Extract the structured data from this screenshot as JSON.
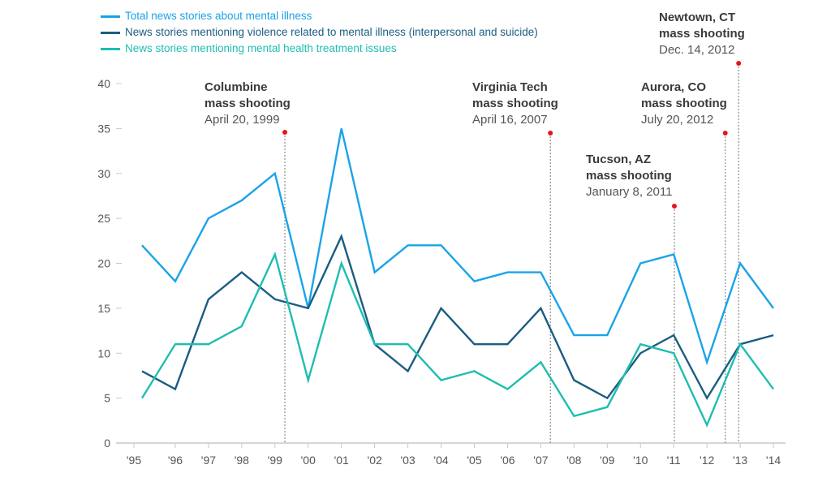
{
  "chart_data": {
    "type": "line",
    "title": "",
    "xlabel": "",
    "ylabel": "",
    "ylim": [
      0,
      40
    ],
    "yticks": [
      0,
      5,
      10,
      15,
      20,
      25,
      30,
      35,
      40
    ],
    "categories": [
      "'95",
      "'96",
      "'97",
      "'98",
      "'99",
      "'00",
      "'01",
      "'02",
      "'03",
      "'04",
      "'05",
      "'06",
      "'07",
      "'08",
      "'09",
      "'10",
      "'11",
      "'12",
      "'13",
      "'14"
    ],
    "grid": false,
    "legend_position": "top-left",
    "series": [
      {
        "name": "Total news stories about mental illness",
        "color": "#1aa3e8",
        "values": [
          22,
          18,
          25,
          27,
          30,
          15,
          35,
          19,
          22,
          22,
          18,
          19,
          19,
          12,
          12,
          20,
          21,
          9,
          20,
          15
        ]
      },
      {
        "name": "News stories mentioning violence related to mental illness (interpersonal and  suicide)",
        "color": "#1b5c82",
        "values": [
          8,
          6,
          16,
          19,
          16,
          15,
          23,
          11,
          8,
          15,
          11,
          11,
          15,
          7,
          5,
          10,
          12,
          5,
          11,
          12
        ]
      },
      {
        "name": "News stories mentioning mental health treatment issues",
        "color": "#1fbdb2",
        "values": [
          5,
          11,
          11,
          13,
          21,
          7,
          20,
          11,
          11,
          7,
          8,
          6,
          9,
          3,
          4,
          11,
          10,
          2,
          11,
          6
        ]
      }
    ],
    "annotations": [
      {
        "title1": "Columbine",
        "title2": "mass shooting",
        "date": "April 20, 1999"
      },
      {
        "title1": "Virginia Tech",
        "title2": "mass shooting",
        "date": "April 16, 2007"
      },
      {
        "title1": "Tucson, AZ",
        "title2": "mass shooting",
        "date": "January 8, 2011"
      },
      {
        "title1": "Aurora, CO",
        "title2": "mass shooting",
        "date": "July 20, 2012"
      },
      {
        "title1": "Newtown, CT",
        "title2": "mass shooting",
        "date": "Dec. 14, 2012"
      }
    ],
    "marker_color": "#e8141c"
  }
}
